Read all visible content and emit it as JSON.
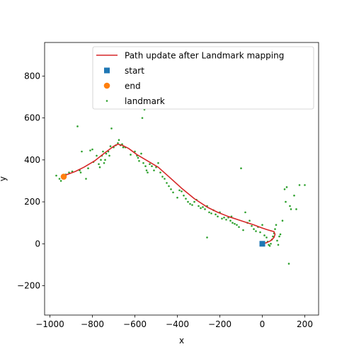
{
  "chart_data": {
    "type": "scatter",
    "title": "",
    "xlabel": "x",
    "ylabel": "y",
    "xlim": [
      -1025,
      265
    ],
    "ylim": [
      -340,
      960
    ],
    "xticks": [
      -1000,
      -800,
      -600,
      -400,
      -200,
      0,
      200
    ],
    "yticks": [
      -200,
      0,
      200,
      400,
      600,
      800
    ],
    "grid": false,
    "legend_position": "top-right",
    "series": [
      {
        "name": "Path update after Landmark mapping",
        "kind": "line",
        "color": "#d62728",
        "points": [
          [
            0,
            0
          ],
          [
            20,
            5
          ],
          [
            40,
            15
          ],
          [
            55,
            30
          ],
          [
            60,
            45
          ],
          [
            55,
            58
          ],
          [
            40,
            62
          ],
          [
            20,
            68
          ],
          [
            0,
            75
          ],
          [
            -40,
            90
          ],
          [
            -100,
            110
          ],
          [
            -160,
            130
          ],
          [
            -210,
            150
          ],
          [
            -260,
            175
          ],
          [
            -320,
            215
          ],
          [
            -380,
            265
          ],
          [
            -440,
            320
          ],
          [
            -490,
            365
          ],
          [
            -540,
            395
          ],
          [
            -590,
            425
          ],
          [
            -630,
            455
          ],
          [
            -660,
            470
          ],
          [
            -680,
            475
          ],
          [
            -700,
            465
          ],
          [
            -740,
            435
          ],
          [
            -790,
            395
          ],
          [
            -840,
            365
          ],
          [
            -880,
            345
          ],
          [
            -920,
            330
          ],
          [
            -940,
            320
          ]
        ]
      },
      {
        "name": "start",
        "kind": "marker",
        "marker": "square",
        "color": "#1f77b4",
        "points": [
          [
            0,
            0
          ]
        ]
      },
      {
        "name": "end",
        "kind": "marker",
        "marker": "circle",
        "color": "#ff7f0e",
        "points": [
          [
            -935,
            320
          ]
        ]
      },
      {
        "name": "landmark",
        "kind": "scatter",
        "marker": "dot",
        "color": "#2ca02c",
        "points": [
          [
            -970,
            325
          ],
          [
            -955,
            310
          ],
          [
            -948,
            300
          ],
          [
            -930,
            318
          ],
          [
            -925,
            330
          ],
          [
            -910,
            340
          ],
          [
            -895,
            345
          ],
          [
            -870,
            560
          ],
          [
            -860,
            350
          ],
          [
            -855,
            340
          ],
          [
            -850,
            440
          ],
          [
            -830,
            310
          ],
          [
            -820,
            360
          ],
          [
            -810,
            445
          ],
          [
            -800,
            450
          ],
          [
            -795,
            390
          ],
          [
            -780,
            420
          ],
          [
            -770,
            380
          ],
          [
            -765,
            365
          ],
          [
            -760,
            400
          ],
          [
            -755,
            420
          ],
          [
            -750,
            440
          ],
          [
            -745,
            385
          ],
          [
            -740,
            400
          ],
          [
            -735,
            430
          ],
          [
            -725,
            440
          ],
          [
            -720,
            420
          ],
          [
            -715,
            465
          ],
          [
            -710,
            550
          ],
          [
            -700,
            460
          ],
          [
            -690,
            470
          ],
          [
            -680,
            480
          ],
          [
            -675,
            495
          ],
          [
            -668,
            470
          ],
          [
            -660,
            475
          ],
          [
            -655,
            460
          ],
          [
            -645,
            460
          ],
          [
            -620,
            425
          ],
          [
            -600,
            440
          ],
          [
            -590,
            420
          ],
          [
            -585,
            410
          ],
          [
            -580,
            395
          ],
          [
            -570,
            430
          ],
          [
            -565,
            600
          ],
          [
            -560,
            385
          ],
          [
            -555,
            640
          ],
          [
            -550,
            370
          ],
          [
            -545,
            350
          ],
          [
            -540,
            340
          ],
          [
            -530,
            380
          ],
          [
            -520,
            370
          ],
          [
            -510,
            350
          ],
          [
            -500,
            365
          ],
          [
            -490,
            385
          ],
          [
            -480,
            340
          ],
          [
            -470,
            320
          ],
          [
            -460,
            310
          ],
          [
            -450,
            290
          ],
          [
            -440,
            275
          ],
          [
            -430,
            260
          ],
          [
            -420,
            245
          ],
          [
            -400,
            220
          ],
          [
            -390,
            255
          ],
          [
            -380,
            250
          ],
          [
            -370,
            230
          ],
          [
            -360,
            215
          ],
          [
            -350,
            200
          ],
          [
            -340,
            190
          ],
          [
            -330,
            185
          ],
          [
            -320,
            200
          ],
          [
            -310,
            210
          ],
          [
            -300,
            180
          ],
          [
            -290,
            170
          ],
          [
            -280,
            175
          ],
          [
            -270,
            165
          ],
          [
            -260,
            180
          ],
          [
            -250,
            150
          ],
          [
            -240,
            145
          ],
          [
            -230,
            160
          ],
          [
            -220,
            140
          ],
          [
            -210,
            130
          ],
          [
            -200,
            150
          ],
          [
            -190,
            120
          ],
          [
            -180,
            125
          ],
          [
            -170,
            115
          ],
          [
            -160,
            125
          ],
          [
            -150,
            110
          ],
          [
            -140,
            100
          ],
          [
            -130,
            95
          ],
          [
            -120,
            90
          ],
          [
            -110,
            80
          ],
          [
            -100,
            360
          ],
          [
            -90,
            65
          ],
          [
            -80,
            150
          ],
          [
            -70,
            100
          ],
          [
            -60,
            110
          ],
          [
            -50,
            85
          ],
          [
            -40,
            70
          ],
          [
            -30,
            60
          ],
          [
            -20,
            80
          ],
          [
            -10,
            55
          ],
          [
            0,
            90
          ],
          [
            10,
            40
          ],
          [
            20,
            30
          ],
          [
            25,
            10
          ],
          [
            30,
            -5
          ],
          [
            35,
            -10
          ],
          [
            40,
            0
          ],
          [
            45,
            20
          ],
          [
            50,
            35
          ],
          [
            55,
            50
          ],
          [
            60,
            70
          ],
          [
            65,
            90
          ],
          [
            70,
            15
          ],
          [
            75,
            -5
          ],
          [
            80,
            35
          ],
          [
            85,
            45
          ],
          [
            95,
            110
          ],
          [
            105,
            260
          ],
          [
            110,
            200
          ],
          [
            115,
            270
          ],
          [
            125,
            -95
          ],
          [
            130,
            180
          ],
          [
            135,
            165
          ],
          [
            150,
            230
          ],
          [
            160,
            165
          ],
          [
            175,
            280
          ],
          [
            200,
            280
          ],
          [
            -260,
            30
          ],
          [
            -145,
            130
          ]
        ]
      }
    ]
  }
}
